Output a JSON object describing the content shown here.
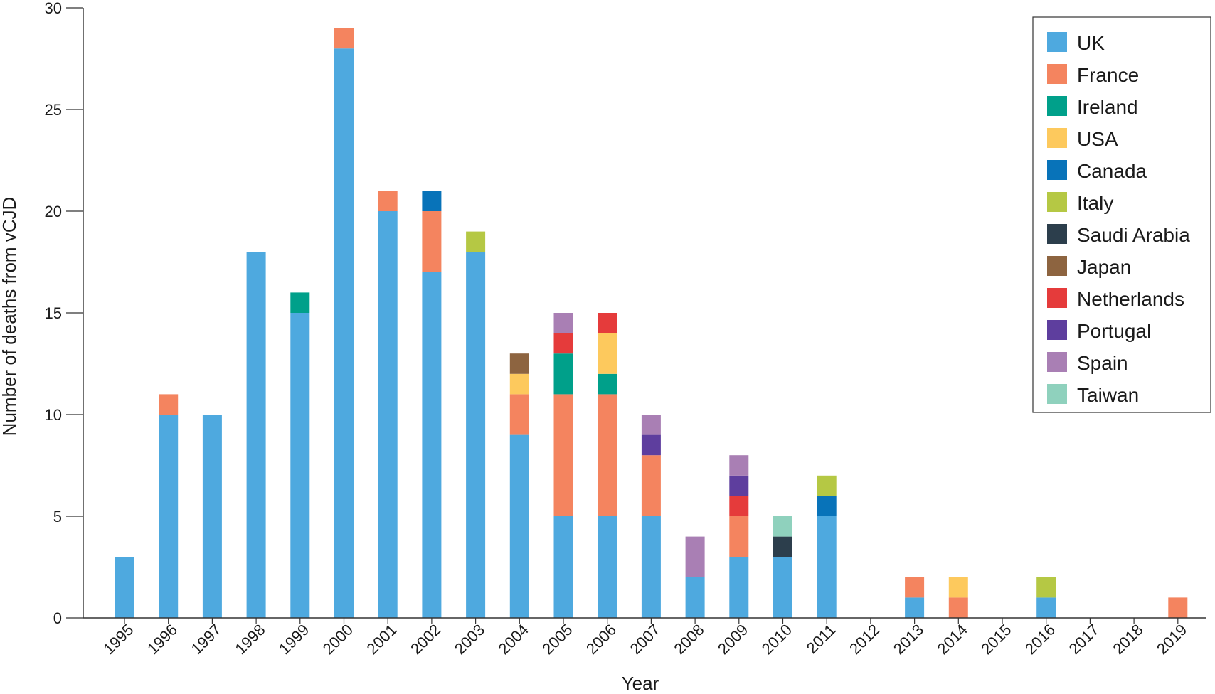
{
  "chart_data": {
    "type": "bar",
    "stacked": true,
    "xlabel": "Year",
    "ylabel": "Number of deaths from vCJD",
    "ylim": [
      0,
      30
    ],
    "yticks": [
      0,
      5,
      10,
      15,
      20,
      25,
      30
    ],
    "legend_position": "top-right",
    "grid": false,
    "categories": [
      "1995",
      "1996",
      "1997",
      "1998",
      "1999",
      "2000",
      "2001",
      "2002",
      "2003",
      "2004",
      "2005",
      "2006",
      "2007",
      "2008",
      "2009",
      "2010",
      "2011",
      "2012",
      "2013",
      "2014",
      "2015",
      "2016",
      "2017",
      "2018",
      "2019"
    ],
    "series": [
      {
        "name": "UK",
        "color": "#4ea9df",
        "values": [
          3,
          10,
          10,
          18,
          15,
          28,
          20,
          17,
          18,
          9,
          5,
          5,
          5,
          2,
          3,
          3,
          5,
          0,
          1,
          0,
          0,
          1,
          0,
          0,
          0
        ]
      },
      {
        "name": "France",
        "color": "#f4845f",
        "values": [
          0,
          1,
          0,
          0,
          0,
          1,
          1,
          3,
          0,
          2,
          6,
          6,
          3,
          0,
          2,
          0,
          0,
          0,
          1,
          1,
          0,
          0,
          0,
          0,
          1
        ]
      },
      {
        "name": "Ireland",
        "color": "#00a08a",
        "values": [
          0,
          0,
          0,
          0,
          1,
          0,
          0,
          0,
          0,
          0,
          2,
          1,
          0,
          0,
          0,
          0,
          0,
          0,
          0,
          0,
          0,
          0,
          0,
          0,
          0
        ]
      },
      {
        "name": "USA",
        "color": "#fdc95d",
        "values": [
          0,
          0,
          0,
          0,
          0,
          0,
          0,
          0,
          0,
          1,
          0,
          2,
          0,
          0,
          0,
          0,
          0,
          0,
          0,
          1,
          0,
          0,
          0,
          0,
          0
        ]
      },
      {
        "name": "Canada",
        "color": "#0873b9",
        "values": [
          0,
          0,
          0,
          0,
          0,
          0,
          0,
          1,
          0,
          0,
          0,
          0,
          0,
          0,
          0,
          0,
          1,
          0,
          0,
          0,
          0,
          0,
          0,
          0,
          0
        ]
      },
      {
        "name": "Italy",
        "color": "#b5c844",
        "values": [
          0,
          0,
          0,
          0,
          0,
          0,
          0,
          0,
          1,
          0,
          0,
          0,
          0,
          0,
          0,
          0,
          1,
          0,
          0,
          0,
          0,
          1,
          0,
          0,
          0
        ]
      },
      {
        "name": "Saudi Arabia",
        "color": "#2c3e4c",
        "values": [
          0,
          0,
          0,
          0,
          0,
          0,
          0,
          0,
          0,
          0,
          0,
          0,
          0,
          0,
          0,
          1,
          0,
          0,
          0,
          0,
          0,
          0,
          0,
          0,
          0
        ]
      },
      {
        "name": "Japan",
        "color": "#8d6440",
        "values": [
          0,
          0,
          0,
          0,
          0,
          0,
          0,
          0,
          0,
          1,
          0,
          0,
          0,
          0,
          0,
          0,
          0,
          0,
          0,
          0,
          0,
          0,
          0,
          0,
          0
        ]
      },
      {
        "name": "Netherlands",
        "color": "#e53b3b",
        "values": [
          0,
          0,
          0,
          0,
          0,
          0,
          0,
          0,
          0,
          0,
          1,
          1,
          0,
          0,
          1,
          0,
          0,
          0,
          0,
          0,
          0,
          0,
          0,
          0,
          0
        ]
      },
      {
        "name": "Portugal",
        "color": "#5e3e9e",
        "values": [
          0,
          0,
          0,
          0,
          0,
          0,
          0,
          0,
          0,
          0,
          0,
          0,
          1,
          0,
          1,
          0,
          0,
          0,
          0,
          0,
          0,
          0,
          0,
          0,
          0
        ]
      },
      {
        "name": "Spain",
        "color": "#a97fb4",
        "values": [
          0,
          0,
          0,
          0,
          0,
          0,
          0,
          0,
          0,
          0,
          1,
          0,
          1,
          2,
          1,
          0,
          0,
          0,
          0,
          0,
          0,
          0,
          0,
          0,
          0
        ]
      },
      {
        "name": "Taiwan",
        "color": "#8fd1bd",
        "values": [
          0,
          0,
          0,
          0,
          0,
          0,
          0,
          0,
          0,
          0,
          0,
          0,
          0,
          0,
          0,
          1,
          0,
          0,
          0,
          0,
          0,
          0,
          0,
          0,
          0
        ]
      }
    ]
  }
}
